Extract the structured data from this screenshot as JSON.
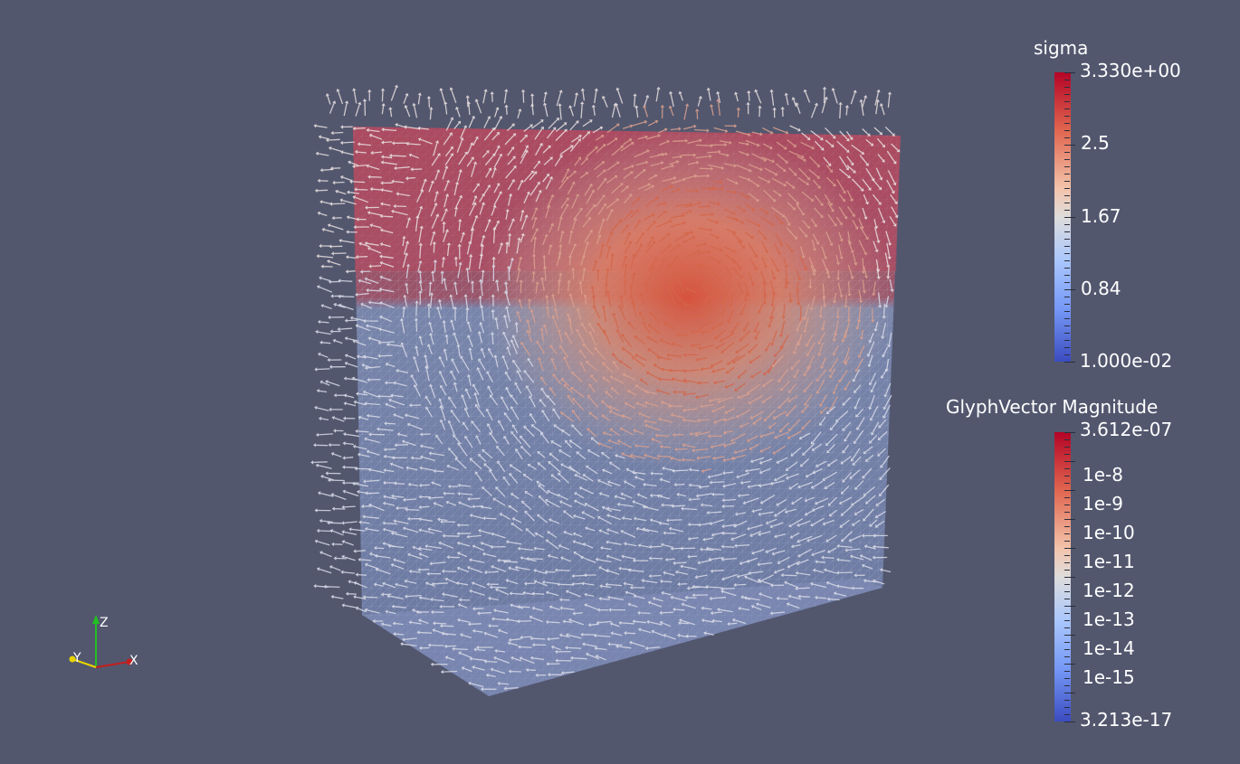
{
  "legends": {
    "sigma": {
      "title": "sigma",
      "labels": [
        "3.330e+00",
        "2.5",
        "1.67",
        "0.84",
        "1.000e-02"
      ]
    },
    "glyph": {
      "title": "GlyphVector Magnitude",
      "labels": [
        "3.612e-07",
        "1e-8",
        "1e-9",
        "1e-10",
        "1e-11",
        "1e-12",
        "1e-13",
        "1e-14",
        "1e-15",
        "3.213e-17"
      ]
    }
  },
  "axes_widget": {
    "x_label": "X",
    "y_label": "Y",
    "z_label": "Z"
  },
  "colors": {
    "background": "#52576e",
    "colormap_high": "#b40426",
    "colormap_mid": "#dedcdb",
    "colormap_low": "#3b4cc0",
    "axis_x": "#c41e1e",
    "axis_y": "#e8d400",
    "axis_z": "#22c022"
  }
}
